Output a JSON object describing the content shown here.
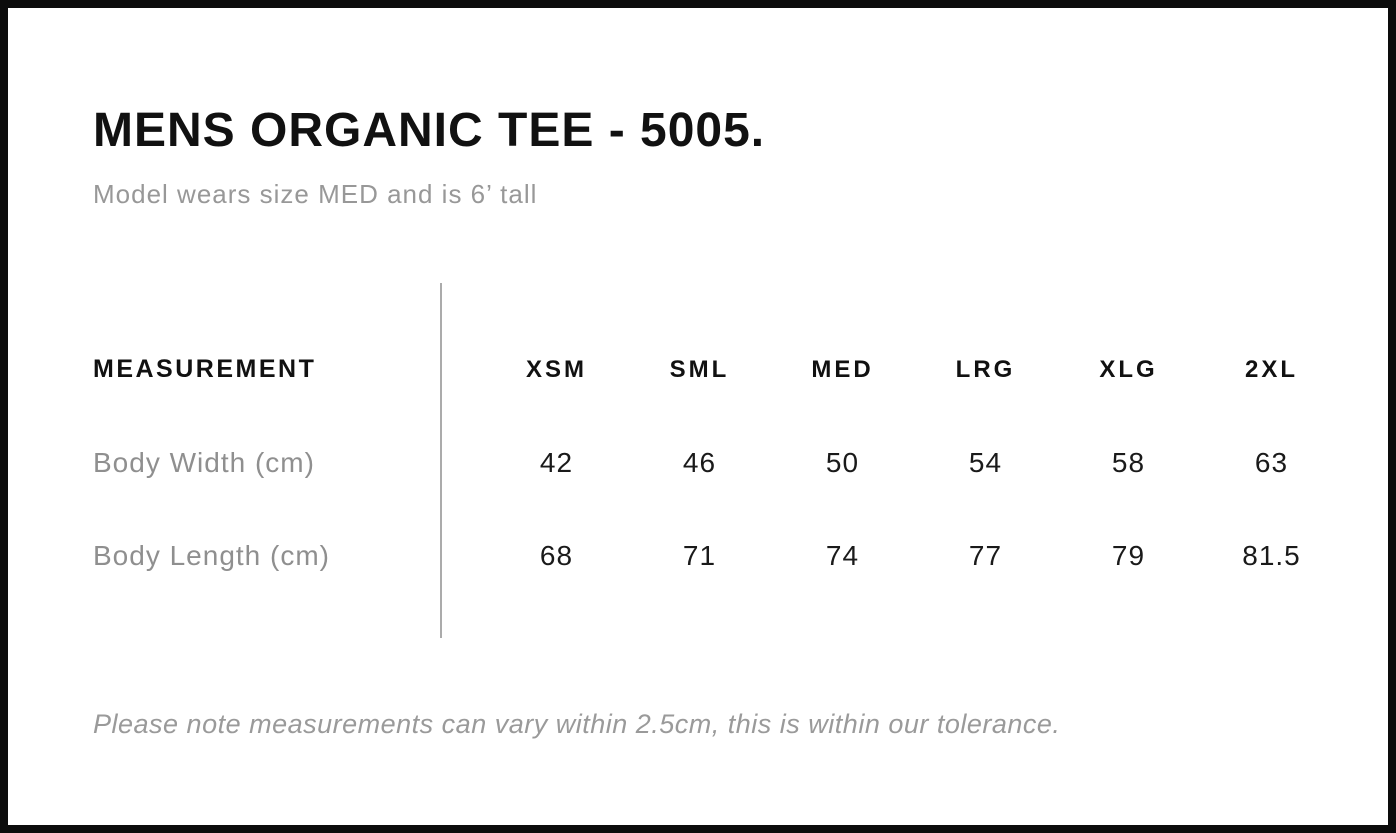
{
  "page": {
    "title": "MENS ORGANIC TEE - 5005.",
    "subtitle": "Model wears size MED and is 6’ tall",
    "footnote": "Please note measurements can vary within 2.5cm, this is within our tolerance."
  },
  "size_chart": {
    "measurement_header": "MEASUREMENT",
    "size_headers": [
      "XSM",
      "SML",
      "MED",
      "LRG",
      "XLG",
      "2XL"
    ],
    "rows": [
      {
        "label": "Body Width (cm)",
        "values": [
          "42",
          "46",
          "50",
          "54",
          "58",
          "63"
        ]
      },
      {
        "label": "Body Length (cm)",
        "values": [
          "68",
          "71",
          "74",
          "77",
          "79",
          "81.5"
        ]
      }
    ]
  },
  "colors": {
    "frame_border": "#0c0c0c",
    "text_primary": "#111111",
    "text_values": "#1a1a1a",
    "text_muted": "#989898",
    "divider": "#ababab"
  }
}
